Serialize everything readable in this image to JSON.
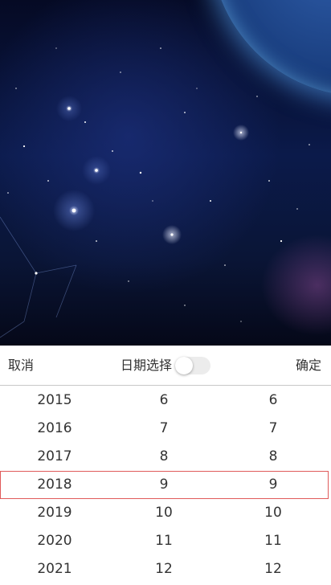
{
  "picker": {
    "cancel_label": "取消",
    "title": "日期选择",
    "confirm_label": "确定",
    "toggle_on": false,
    "selected_index": 3,
    "rows": [
      {
        "year": "2015",
        "month": "6",
        "day": "6"
      },
      {
        "year": "2016",
        "month": "7",
        "day": "7"
      },
      {
        "year": "2017",
        "month": "8",
        "day": "8"
      },
      {
        "year": "2018",
        "month": "9",
        "day": "9"
      },
      {
        "year": "2019",
        "month": "10",
        "day": "10"
      },
      {
        "year": "2020",
        "month": "11",
        "day": "11"
      },
      {
        "year": "2021",
        "month": "12",
        "day": "12"
      }
    ]
  },
  "colors": {
    "highlight_border": "#e05a5a",
    "text": "#333333",
    "divider": "#c8c8c8"
  }
}
